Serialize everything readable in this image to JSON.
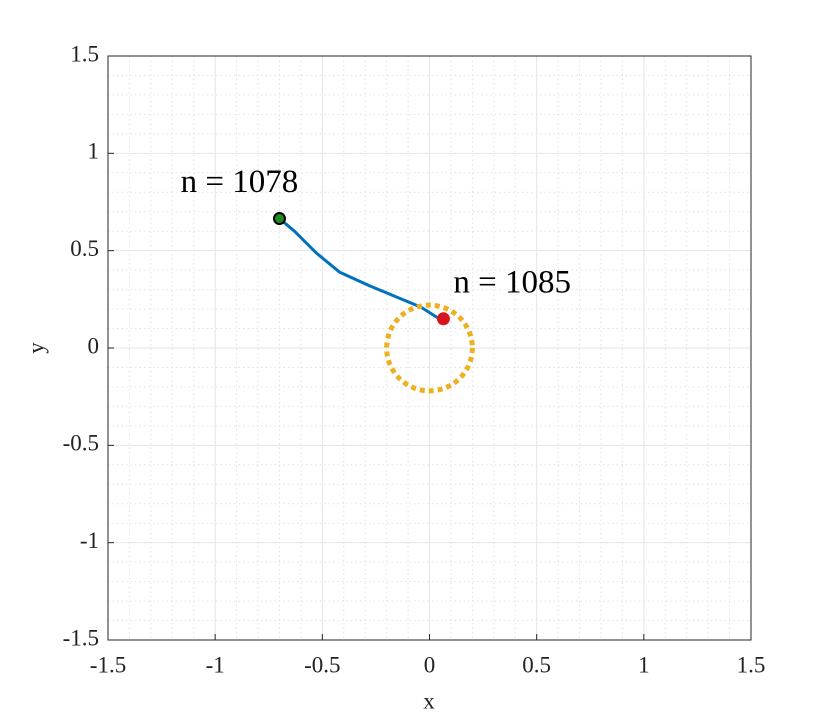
{
  "chart_data": {
    "type": "line",
    "xlabel": "x",
    "ylabel": "y",
    "xlim": [
      -1.5,
      1.5
    ],
    "ylim": [
      -1.5,
      1.5
    ],
    "xticks": [
      -1.5,
      -1,
      -0.5,
      0,
      0.5,
      1,
      1.5
    ],
    "yticks": [
      -1.5,
      -1,
      -0.5,
      0,
      0.5,
      1,
      1.5
    ],
    "grid": true,
    "minor_grid": true,
    "series": [
      {
        "color": "#0072bd",
        "x": [
          -0.7,
          -0.63,
          -0.53,
          -0.42,
          -0.28,
          -0.15,
          -0.04,
          0.06
        ],
        "values": [
          0.665,
          0.6,
          0.49,
          0.39,
          0.32,
          0.26,
          0.21,
          0.14
        ]
      }
    ],
    "markers": [
      {
        "x": -0.7,
        "y": 0.665,
        "color": "#1f8a1f",
        "label": "n = 1078"
      },
      {
        "x": 0.065,
        "y": 0.15,
        "color": "#d7141e",
        "label": "n = 1085"
      }
    ],
    "circle": {
      "x": 0,
      "y": 0,
      "radius": 0.2,
      "color": "#edb120"
    }
  }
}
